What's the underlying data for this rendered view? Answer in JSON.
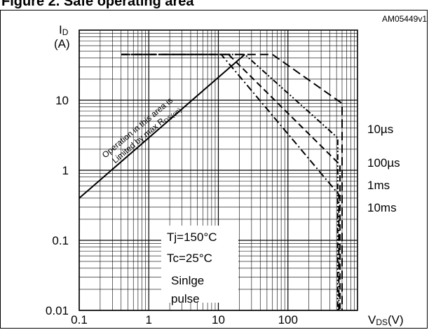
{
  "header": {
    "title": "Figure 2. Safe operating area"
  },
  "figure_code": "AM05449v1",
  "chart_data": {
    "type": "line",
    "title": "Safe operating area",
    "xlabel": "VDS(V)",
    "ylabel": "ID (A)",
    "x_scale": "log",
    "y_scale": "log",
    "xlim": [
      0.1,
      1000
    ],
    "ylim": [
      0.01,
      100
    ],
    "grid": true,
    "x_ticks": [
      "0.1",
      "1",
      "10",
      "100"
    ],
    "y_ticks": [
      "0.01",
      "0.1",
      "1",
      "10"
    ],
    "series": [
      {
        "name": "Limited by max RDS(on)",
        "style": "solid",
        "points": [
          [
            0.1,
            0.4
          ],
          [
            24,
            45
          ]
        ]
      },
      {
        "name": "10µs",
        "style": "long-dash",
        "points": [
          [
            0.4,
            45
          ],
          [
            60,
            45
          ],
          [
            600,
            9
          ],
          [
            600,
            0.01
          ]
        ]
      },
      {
        "name": "100µs",
        "style": "dash-dot-dot",
        "points": [
          [
            0.4,
            45
          ],
          [
            24,
            45
          ],
          [
            520,
            2.9
          ],
          [
            520,
            0.01
          ]
        ]
      },
      {
        "name": "1ms",
        "style": "dash",
        "points": [
          [
            0.4,
            45
          ],
          [
            14,
            45
          ],
          [
            560,
            1.2
          ],
          [
            560,
            0.01
          ]
        ]
      },
      {
        "name": "10ms",
        "style": "dash-dot",
        "points": [
          [
            0.4,
            45
          ],
          [
            11,
            45
          ],
          [
            540,
            0.45
          ],
          [
            540,
            0.01
          ]
        ]
      }
    ],
    "annotations": {
      "rds_note_line1": "Operation in this area is",
      "rds_note_line2": "Limited by max R",
      "rds_note_sub": "DS(on)",
      "conditions": [
        "Tj=150°C",
        "Tc=25°C",
        "Sinlge",
        "pulse"
      ]
    },
    "axis_text": {
      "y_label_main": "I",
      "y_label_sub": "D",
      "y_unit": "(A)",
      "x_label_main": "V",
      "x_label_sub": "DS",
      "x_unit": "(V)"
    }
  }
}
